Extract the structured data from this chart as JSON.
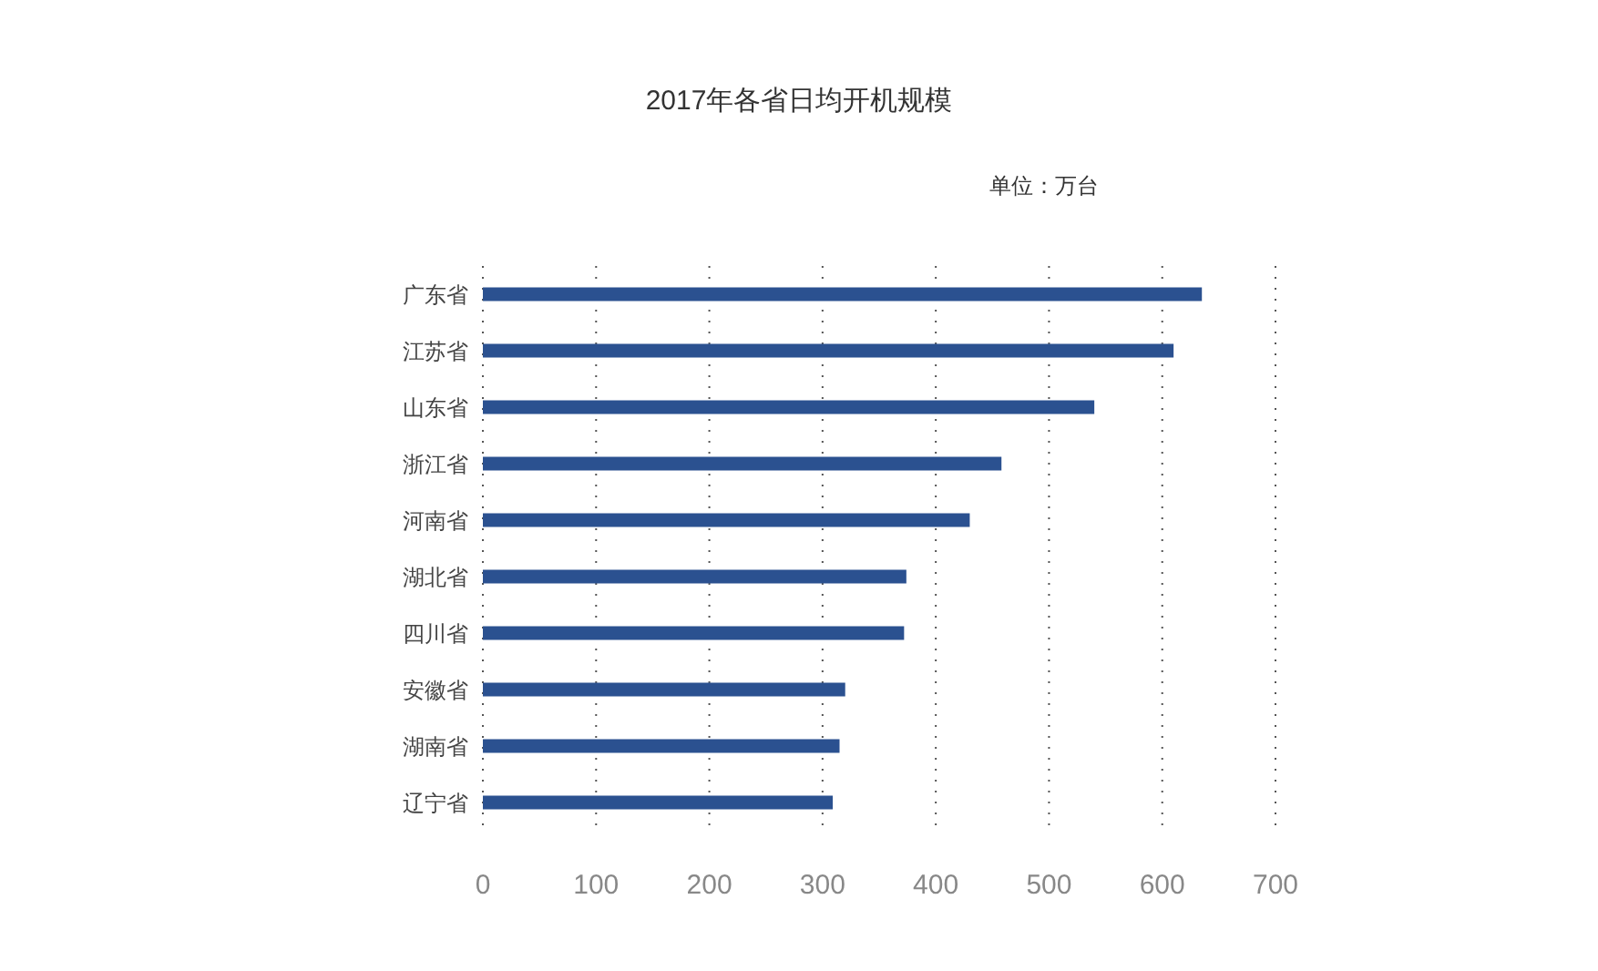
{
  "chart_data": {
    "type": "bar",
    "orientation": "horizontal",
    "title": "2017年各省日均开机规模",
    "annotations": [
      "单位：万台"
    ],
    "categories": [
      "广东省",
      "江苏省",
      "山东省",
      "浙江省",
      "河南省",
      "湖北省",
      "四川省",
      "安徽省",
      "湖南省",
      "辽宁省"
    ],
    "values": [
      635,
      610,
      540,
      458,
      430,
      374,
      372,
      320,
      315,
      309
    ],
    "color": "#2b5190",
    "xlim": [
      0,
      700
    ],
    "xticks": [
      0,
      100,
      200,
      300,
      400,
      500,
      600,
      700
    ],
    "grid": "x"
  }
}
